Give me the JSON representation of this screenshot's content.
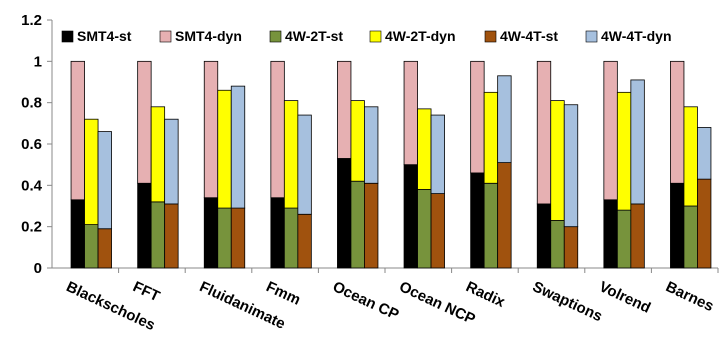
{
  "chart_data": {
    "type": "bar",
    "stacked_pairs": true,
    "categories": [
      "Blackscholes",
      "FFT",
      "Fluidanimate",
      "Fmm",
      "Ocean CP",
      "Ocean NCP",
      "Radix",
      "Swaptions",
      "Volrend",
      "Barnes"
    ],
    "series": [
      {
        "name": "SMT4-st",
        "color": "#000000",
        "values": [
          0.33,
          0.41,
          0.34,
          0.34,
          0.53,
          0.5,
          0.46,
          0.31,
          0.33,
          0.41
        ]
      },
      {
        "name": "SMT4-dyn",
        "color": "#E6B0B2",
        "values": [
          0.67,
          0.59,
          0.66,
          0.66,
          0.47,
          0.5,
          0.54,
          0.69,
          0.67,
          0.59
        ]
      },
      {
        "name": "4W-2T-st",
        "color": "#77933C",
        "values": [
          0.21,
          0.32,
          0.29,
          0.29,
          0.42,
          0.38,
          0.41,
          0.23,
          0.28,
          0.3
        ]
      },
      {
        "name": "4W-2T-dyn",
        "color": "#FFFF00",
        "values": [
          0.51,
          0.46,
          0.57,
          0.52,
          0.39,
          0.39,
          0.44,
          0.58,
          0.57,
          0.48
        ]
      },
      {
        "name": "4W-4T-st",
        "color": "#A0520E",
        "values": [
          0.19,
          0.31,
          0.29,
          0.26,
          0.41,
          0.36,
          0.51,
          0.2,
          0.31,
          0.43
        ]
      },
      {
        "name": "4W-4T-dyn",
        "color": "#A6C0DE",
        "values": [
          0.47,
          0.41,
          0.59,
          0.48,
          0.37,
          0.38,
          0.42,
          0.59,
          0.6,
          0.25
        ]
      }
    ],
    "stacks": [
      [
        "SMT4-st",
        "SMT4-dyn"
      ],
      [
        "4W-2T-st",
        "4W-2T-dyn"
      ],
      [
        "4W-4T-st",
        "4W-4T-dyn"
      ]
    ],
    "ylim": [
      0,
      1.2
    ],
    "yticks": [
      "0",
      "0.2",
      "0.4",
      "0.6",
      "0.8",
      "1",
      "1.2"
    ],
    "grid": false,
    "legend_placement": "top",
    "title": "",
    "xlabel": "",
    "ylabel": ""
  }
}
